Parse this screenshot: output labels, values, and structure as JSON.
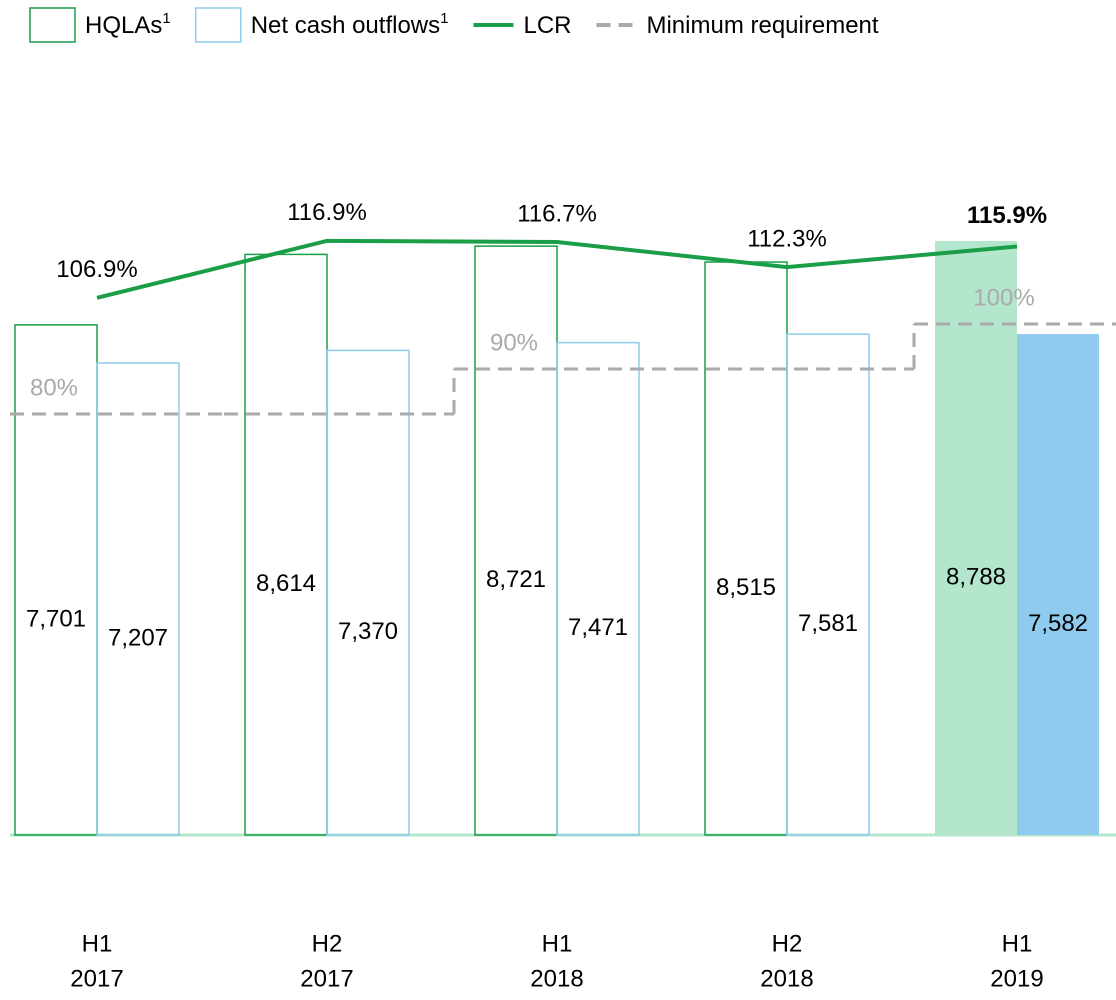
{
  "chart_data": {
    "type": "bar",
    "categories": [
      [
        "H1",
        "2017"
      ],
      [
        "H2",
        "2017"
      ],
      [
        "H1",
        "2018"
      ],
      [
        "H2",
        "2018"
      ],
      [
        "H1",
        "2019"
      ]
    ],
    "ylim": [
      1093,
      10614
    ],
    "y2lim": [
      12.7,
      141.6
    ],
    "y3lim": [
      -13.6,
      149.8
    ],
    "highlight_index": 4,
    "series": [
      {
        "name": "HQLAs",
        "name_superscript": "1",
        "type": "bar",
        "color": "#1a9e48",
        "highlight_fill": "#b3e6cc",
        "values": [
          7701,
          8614,
          8721,
          8515,
          8788
        ],
        "value_labels": [
          "7,701",
          "8,614",
          "8,721",
          "8,515",
          "8,788"
        ]
      },
      {
        "name": "Net cash outflows",
        "name_superscript": "1",
        "type": "bar",
        "color": "#8ecbef",
        "highlight_fill": "#8ecbef",
        "values": [
          7207,
          7370,
          7471,
          7581,
          7582
        ],
        "value_labels": [
          "7,207",
          "7,370",
          "7,471",
          "7,581",
          "7,582"
        ]
      },
      {
        "name": "LCR",
        "type": "line",
        "axis": "y2",
        "color": "#1a9e48",
        "values": [
          106.9,
          116.9,
          116.7,
          112.3,
          115.9
        ],
        "value_labels": [
          "106.9%",
          "116.9%",
          "116.7%",
          "112.3%",
          "115.9%"
        ]
      },
      {
        "name": "Minimum requirement",
        "type": "step",
        "axis": "y3",
        "color": "#aaaaaa",
        "dashed": true,
        "values": [
          80,
          80,
          90,
          90,
          100
        ],
        "value_labels": [
          "80%",
          null,
          "90%",
          null,
          "100%"
        ]
      }
    ]
  }
}
